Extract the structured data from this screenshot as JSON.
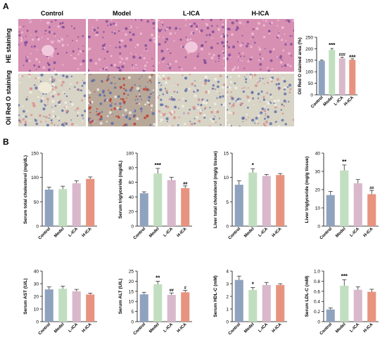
{
  "panels": {
    "a": "A",
    "b": "B"
  },
  "groups": [
    "Control",
    "Model",
    "L-ICA",
    "H-ICA"
  ],
  "stain_rows": [
    "HE staining",
    "Oil Red O staining"
  ],
  "colors": [
    "#8fa3bf",
    "#c1dfc0",
    "#d9b8cb",
    "#e8937f"
  ],
  "chart_data": [
    {
      "type": "bar",
      "ylabel": "Oil Red O stained area (%)",
      "categories": [
        "Control",
        "Model",
        "L-ICA",
        "H-ICA"
      ],
      "values": [
        148,
        195,
        158,
        152
      ],
      "errors": [
        3,
        6,
        5,
        4
      ],
      "ylim": [
        0,
        250
      ],
      "yticks": [
        0,
        50,
        100,
        150,
        200,
        250
      ],
      "sig": [
        "",
        "***",
        "###",
        "###"
      ]
    },
    {
      "type": "bar",
      "ylabel": "Serum total cholesterol (mg/dL)",
      "categories": [
        "Control",
        "Model",
        "L-ICA",
        "H-ICA"
      ],
      "values": [
        75,
        76,
        88,
        97
      ],
      "errors": [
        5,
        6,
        5,
        4
      ],
      "ylim": [
        0,
        150
      ],
      "yticks": [
        0,
        50,
        100,
        150
      ],
      "sig": [
        "",
        "",
        "",
        ""
      ]
    },
    {
      "type": "bar",
      "ylabel": "Serum triglyceride (mg/dL)",
      "categories": [
        "Control",
        "Model",
        "L-ICA",
        "H-ICA"
      ],
      "values": [
        45,
        72,
        63,
        52
      ],
      "errors": [
        2,
        7,
        4,
        3
      ],
      "ylim": [
        0,
        100
      ],
      "yticks": [
        0,
        20,
        40,
        60,
        80,
        100
      ],
      "sig": [
        "",
        "***",
        "",
        "##"
      ]
    },
    {
      "type": "bar",
      "ylabel": "Liver total cholesterol (mg/g tissue)",
      "categories": [
        "Control",
        "Model",
        "L-ICA",
        "H-ICA"
      ],
      "values": [
        8.5,
        11,
        10.3,
        10.5
      ],
      "errors": [
        0.8,
        0.8,
        0.3,
        0.3
      ],
      "ylim": [
        0,
        15
      ],
      "yticks": [
        0,
        5,
        10,
        15
      ],
      "sig": [
        "",
        "*",
        "",
        ""
      ]
    },
    {
      "type": "bar",
      "ylabel": "Liver triglyceride (mg/g tissue)",
      "categories": [
        "Control",
        "Model",
        "L-ICA",
        "H-ICA"
      ],
      "values": [
        17,
        30.5,
        23.5,
        17.5
      ],
      "errors": [
        2,
        3,
        2,
        2
      ],
      "ylim": [
        0,
        40
      ],
      "yticks": [
        0,
        10,
        20,
        30,
        40
      ],
      "sig": [
        "",
        "**",
        "",
        "##"
      ]
    },
    {
      "type": "bar",
      "ylabel": "Serum AST (U/L)",
      "categories": [
        "Control",
        "Model",
        "L-ICA",
        "H-ICA"
      ],
      "values": [
        25.5,
        26,
        24,
        21.5
      ],
      "errors": [
        2,
        2,
        1.5,
        1
      ],
      "ylim": [
        0,
        40
      ],
      "yticks": [
        0,
        10,
        20,
        30,
        40
      ],
      "sig": [
        "",
        "",
        "",
        ""
      ]
    },
    {
      "type": "bar",
      "ylabel": "Serum ALT (U/L)",
      "categories": [
        "Control",
        "Model",
        "L-ICA",
        "H-ICA"
      ],
      "values": [
        13.5,
        18.5,
        13.2,
        14.5
      ],
      "errors": [
        1,
        1.5,
        1,
        1
      ],
      "ylim": [
        0,
        25
      ],
      "yticks": [
        0,
        5,
        10,
        15,
        20,
        25
      ],
      "sig": [
        "",
        "**",
        "##",
        "#"
      ]
    },
    {
      "type": "bar",
      "ylabel": "Serum HDL-C (mM)",
      "categories": [
        "Control",
        "Model",
        "L-ICA",
        "H-ICA"
      ],
      "values": [
        3.3,
        2.5,
        2.9,
        2.9
      ],
      "errors": [
        0.3,
        0.2,
        0.2,
        0.1
      ],
      "ylim": [
        0,
        4
      ],
      "yticks": [
        0,
        1,
        2,
        3,
        4
      ],
      "sig": [
        "",
        "*",
        "",
        ""
      ]
    },
    {
      "type": "bar",
      "ylabel": "Serum LDL-C (mM)",
      "categories": [
        "Control",
        "Model",
        "L-ICA",
        "H-ICA"
      ],
      "values": [
        0.24,
        0.71,
        0.63,
        0.59
      ],
      "errors": [
        0.03,
        0.12,
        0.06,
        0.05
      ],
      "ylim": [
        0,
        1
      ],
      "yticks": [
        0,
        0.2,
        0.4,
        0.6,
        0.8,
        1.0
      ],
      "sig": [
        "",
        "***",
        "",
        ""
      ]
    }
  ]
}
